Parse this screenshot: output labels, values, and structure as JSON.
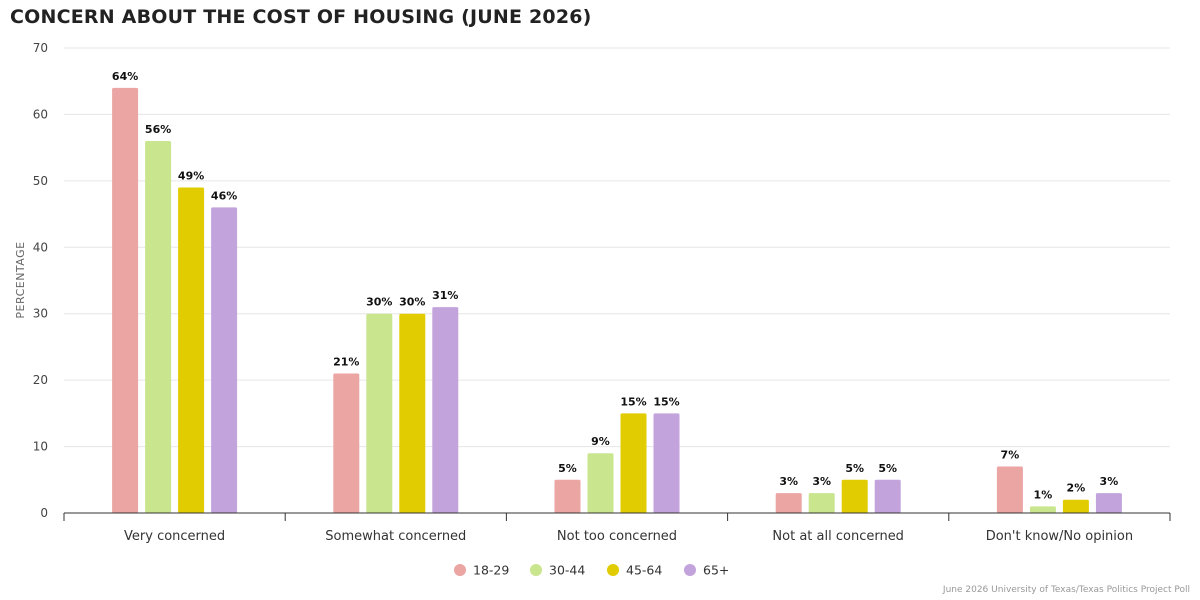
{
  "title": "CONCERN ABOUT THE COST OF HOUSING (JUNE 2026)",
  "source": "June 2026 University of Texas/Texas Politics Project Poll",
  "chart_data": {
    "type": "bar",
    "title": "CONCERN ABOUT THE COST OF HOUSING (JUNE 2026)",
    "ylabel": "PERCENTAGE",
    "xlabel": "",
    "ylim": [
      0,
      70
    ],
    "yticks": [
      0,
      10,
      20,
      30,
      40,
      50,
      60,
      70
    ],
    "grid": true,
    "legend": "bottom-center",
    "categories": [
      "Very concerned",
      "Somewhat concerned",
      "Not too concerned",
      "Not at all concerned",
      "Don't know/No opinion"
    ],
    "series": [
      {
        "name": "18-29",
        "color": "#eba5a3",
        "values": [
          64,
          21,
          5,
          3,
          7
        ]
      },
      {
        "name": "30-44",
        "color": "#c9e58e",
        "values": [
          56,
          30,
          9,
          3,
          1
        ]
      },
      {
        "name": "45-64",
        "color": "#e0cc00",
        "values": [
          49,
          30,
          15,
          5,
          2
        ]
      },
      {
        "name": "65+",
        "color": "#c3a3dc",
        "values": [
          46,
          31,
          15,
          5,
          3
        ]
      }
    ]
  }
}
